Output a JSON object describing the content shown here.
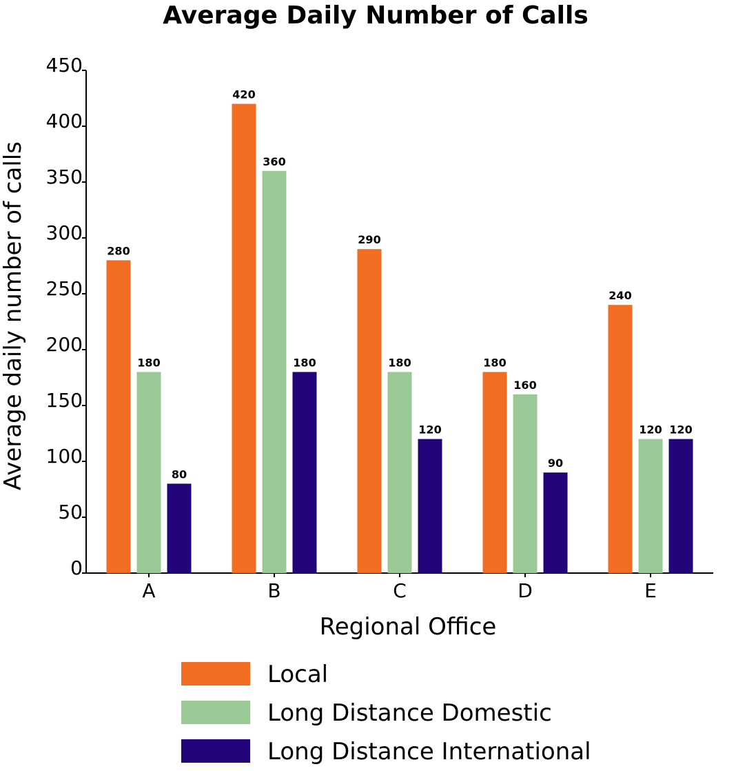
{
  "chart_data": {
    "type": "bar",
    "title": "Average Daily Number of Calls",
    "xlabel": "Regional Office",
    "ylabel": "Average daily number of calls",
    "categories": [
      "A",
      "B",
      "C",
      "D",
      "E"
    ],
    "series": [
      {
        "name": "Local",
        "color": "#f26c22",
        "values": [
          280,
          420,
          290,
          180,
          240
        ]
      },
      {
        "name": "Long Distance Domestic",
        "color": "#9bc996",
        "values": [
          180,
          360,
          180,
          160,
          120
        ]
      },
      {
        "name": "Long Distance International",
        "color": "#23037a",
        "values": [
          80,
          180,
          120,
          90,
          120
        ]
      }
    ],
    "ylim": [
      0,
      450
    ],
    "yticks": [
      0,
      50,
      100,
      150,
      200,
      250,
      300,
      350,
      400,
      450
    ],
    "grid": false,
    "legend_position": "bottom"
  }
}
